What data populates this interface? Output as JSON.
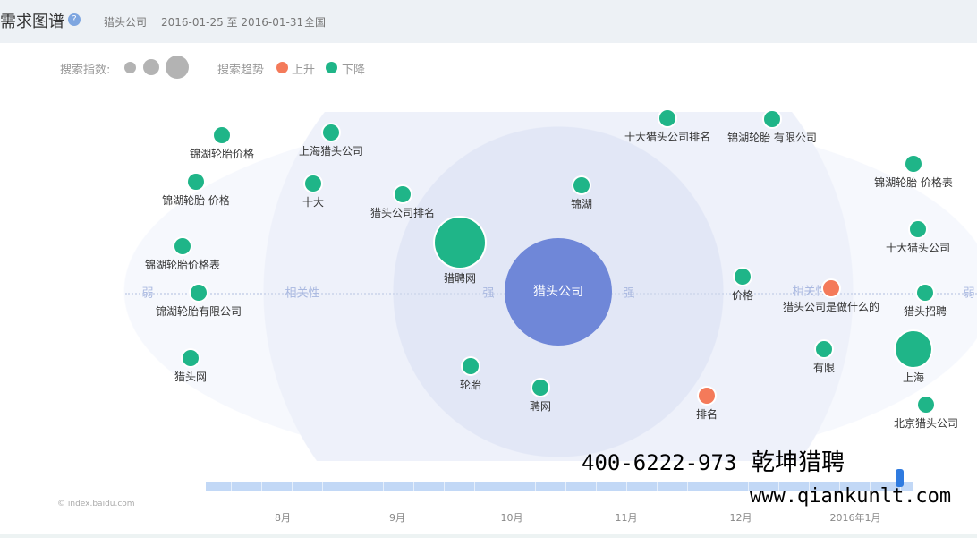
{
  "header": {
    "title": "需求图谱",
    "help_icon": "question-icon",
    "keyword": "猎头公司",
    "date_range": "2016-01-25 至 2016-01-31",
    "region": "全国"
  },
  "legend": {
    "index_label": "搜索指数:",
    "trend_label": "搜索趋势",
    "up_label": "上升",
    "down_label": "下降"
  },
  "colors": {
    "up": "#f47a5a",
    "down": "#1fb588",
    "center": "#6f87d8",
    "index_dot": "#b3b3b3"
  },
  "center": {
    "label": "猎头公司"
  },
  "axis_labels": [
    "弱",
    "相关性",
    "强",
    "强",
    "相关性",
    "弱"
  ],
  "nodes": [
    {
      "label": "锦湖轮胎价格",
      "trend": "down"
    },
    {
      "label": "上海猎头公司",
      "trend": "down"
    },
    {
      "label": "锦湖轮胎 价格",
      "trend": "down"
    },
    {
      "label": "十大",
      "trend": "down"
    },
    {
      "label": "猎头公司排名",
      "trend": "down"
    },
    {
      "label": "锦湖",
      "trend": "down"
    },
    {
      "label": "十大猎头公司排名",
      "trend": "down"
    },
    {
      "label": "锦湖轮胎 有限公司",
      "trend": "down"
    },
    {
      "label": "锦湖轮胎 价格表",
      "trend": "down"
    },
    {
      "label": "猎聘网",
      "trend": "down"
    },
    {
      "label": "锦湖轮胎价格表",
      "trend": "down"
    },
    {
      "label": "十大猎头公司",
      "trend": "down"
    },
    {
      "label": "锦湖轮胎有限公司",
      "trend": "down"
    },
    {
      "label": "价格",
      "trend": "down"
    },
    {
      "label": "猎头公司是做什么的",
      "trend": "up"
    },
    {
      "label": "猎头招聘",
      "trend": "down"
    },
    {
      "label": "猎头网",
      "trend": "down"
    },
    {
      "label": "轮胎",
      "trend": "down"
    },
    {
      "label": "聘网",
      "trend": "down"
    },
    {
      "label": "有限",
      "trend": "down"
    },
    {
      "label": "上海",
      "trend": "down"
    },
    {
      "label": "排名",
      "trend": "up"
    },
    {
      "label": "北京猎头公司",
      "trend": "down"
    }
  ],
  "timeline": {
    "months": [
      "8月",
      "9月",
      "10月",
      "11月",
      "12月",
      "2016年1月"
    ]
  },
  "copyright": "© index.baidu.com",
  "watermark": {
    "name": "乾坤猎聘",
    "url": "www.qiankunlt.com",
    "phone": "400-6222-973"
  }
}
